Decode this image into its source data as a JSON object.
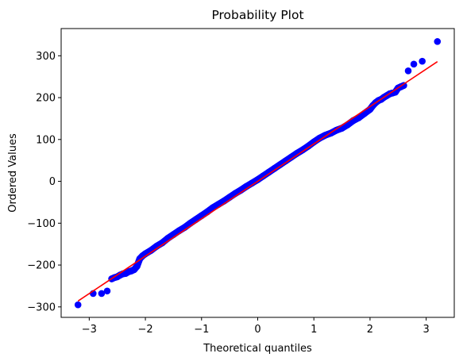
{
  "chart_data": {
    "type": "scatter",
    "title": "Probability Plot",
    "xlabel": "Theoretical quantiles",
    "ylabel": "Ordered Values",
    "xlim": [
      -3.5,
      3.5
    ],
    "ylim": [
      -325,
      365
    ],
    "xticks": [
      -3,
      -2,
      -1,
      0,
      1,
      2,
      3
    ],
    "xtick_labels": [
      "−3",
      "−2",
      "−1",
      "0",
      "1",
      "2",
      "3"
    ],
    "yticks": [
      -300,
      -200,
      -100,
      0,
      100,
      200,
      300
    ],
    "ytick_labels": [
      "−300",
      "−200",
      "−100",
      "0",
      "100",
      "200",
      "300"
    ],
    "grid": false,
    "colors": {
      "points": "#0000ff",
      "fit_line": "#ff0000",
      "axes": "#000000"
    },
    "series": [
      {
        "kind": "points",
        "x": [
          -3.2,
          -2.93,
          -2.78,
          -2.68,
          -2.6,
          -2.55,
          -2.5,
          -2.45,
          -2.4,
          -2.35,
          -2.3,
          -2.25,
          -2.2,
          -2.15,
          -2.1,
          -2.05,
          -2.0,
          -1.9,
          -1.8,
          -1.7,
          -1.6,
          -1.5,
          -1.4,
          -1.3,
          -1.2,
          -1.1,
          -1.0,
          -0.9,
          -0.8,
          -0.7,
          -0.6,
          -0.5,
          -0.4,
          -0.3,
          -0.2,
          -0.1,
          0.0,
          0.1,
          0.2,
          0.3,
          0.4,
          0.5,
          0.6,
          0.7,
          0.8,
          0.9,
          1.0,
          1.1,
          1.2,
          1.3,
          1.4,
          1.5,
          1.6,
          1.7,
          1.8,
          1.9,
          2.0,
          2.05,
          2.1,
          2.15,
          2.2,
          2.25,
          2.3,
          2.35,
          2.4,
          2.45,
          2.5,
          2.55,
          2.6,
          2.68,
          2.78,
          2.93,
          3.2
        ],
        "y": [
          -295,
          -268,
          -268,
          -262,
          -233,
          -230,
          -228,
          -224,
          -221,
          -220,
          -216,
          -214,
          -211,
          -203,
          -185,
          -178,
          -173,
          -165,
          -155,
          -147,
          -136,
          -127,
          -118,
          -110,
          -100,
          -91,
          -82,
          -73,
          -63,
          -55,
          -47,
          -38,
          -29,
          -21,
          -12,
          -4,
          4,
          13,
          22,
          31,
          40,
          49,
          58,
          67,
          75,
          84,
          94,
          103,
          110,
          115,
          122,
          127,
          135,
          145,
          152,
          162,
          172,
          181,
          188,
          193,
          196,
          201,
          205,
          209,
          211,
          213,
          223,
          226,
          229,
          264,
          280,
          287,
          334
        ]
      },
      {
        "kind": "fit-line",
        "x": [
          -3.2,
          3.2
        ],
        "y": [
          -286,
          286
        ]
      }
    ]
  }
}
